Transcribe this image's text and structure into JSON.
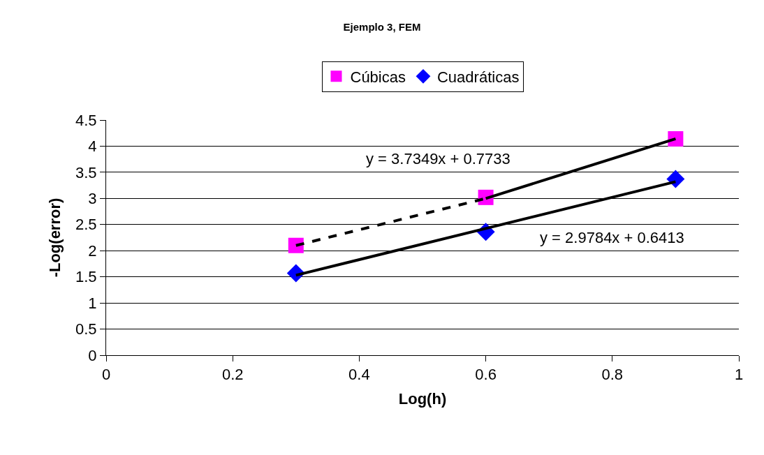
{
  "chart_data": {
    "type": "scatter",
    "title": "Ejemplo 3, FEM",
    "xlabel": "Log(h)",
    "ylabel": "-Log(error)",
    "x": [
      0.3,
      0.6,
      0.9
    ],
    "series": [
      {
        "name": "Cúbicas",
        "color": "#ff00ff",
        "values": [
          2.1,
          3.02,
          4.14
        ],
        "marker": "square"
      },
      {
        "name": "Cuadráticas",
        "color": "#0000ff",
        "values": [
          1.57,
          2.36,
          3.37
        ],
        "marker": "diamond"
      },
      {
        "type": "line",
        "color": "#000000",
        "x": [
          0.3,
          0.6
        ],
        "values": [
          2.1,
          3.0
        ],
        "line_style": "dashed",
        "marker": "none"
      },
      {
        "type": "line",
        "color": "#000000",
        "x": [
          0.6,
          0.9
        ],
        "values": [
          3.0,
          4.14
        ],
        "line_style": "solid",
        "marker": "none"
      },
      {
        "type": "line",
        "color": "#000000",
        "x": [
          0.3,
          0.9
        ],
        "values": [
          1.53,
          3.32
        ],
        "line_style": "solid",
        "marker": "none"
      }
    ],
    "xlim": [
      0,
      1
    ],
    "xticks": [
      0,
      0.2,
      0.4,
      0.6,
      0.8,
      1
    ],
    "ylim": [
      0,
      4.5
    ],
    "yticks": [
      0,
      0.5,
      1,
      1.5,
      2,
      2.5,
      3,
      3.5,
      4,
      4.5
    ],
    "grid": "y",
    "legend": "top",
    "annotations": [
      "y = 3.7349x + 0.7733",
      "y = 2.9784x + 0.6413"
    ]
  }
}
